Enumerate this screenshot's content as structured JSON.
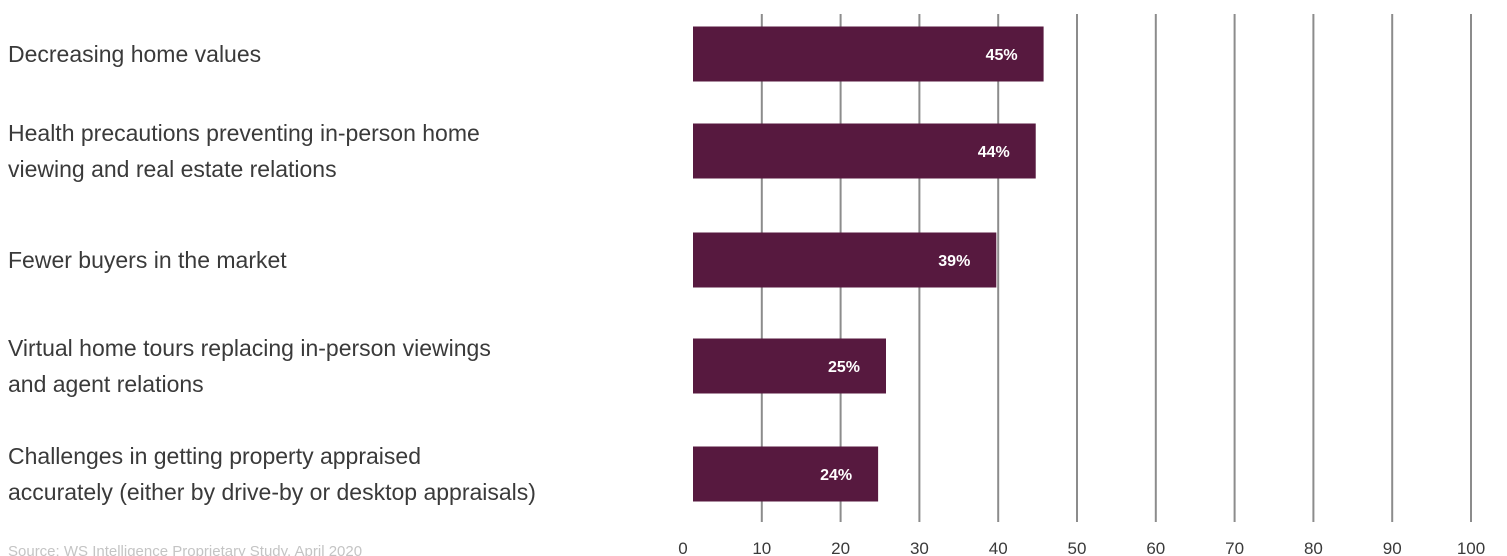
{
  "chart_data": {
    "type": "bar",
    "orientation": "horizontal",
    "categories": [
      [
        "Decreasing home values"
      ],
      [
        "Health precautions preventing in-person home",
        "viewing and real estate relations"
      ],
      [
        "Fewer buyers in the market"
      ],
      [
        "Virtual home tours replacing in-person viewings",
        "and agent relations"
      ],
      [
        "Challenges in getting property appraised",
        "accurately (either by drive-by or desktop appraisals)"
      ]
    ],
    "values": [
      45,
      44,
      39,
      25,
      24
    ],
    "value_labels": [
      "45%",
      "44%",
      "39%",
      "25%",
      "24%"
    ],
    "xlim": [
      0,
      100
    ],
    "x_ticks": [
      "0",
      "10",
      "20",
      "30",
      "40",
      "50",
      "60",
      "70",
      "80",
      "90",
      "100"
    ],
    "grid": "vertical",
    "source": "Source: WS Intelligence Proprietary Study, April 2020",
    "colors": {
      "bar": "#57193f",
      "grid": "#8c8c8c",
      "text": "#3a3a3a",
      "source": "#c4c4c4"
    }
  }
}
